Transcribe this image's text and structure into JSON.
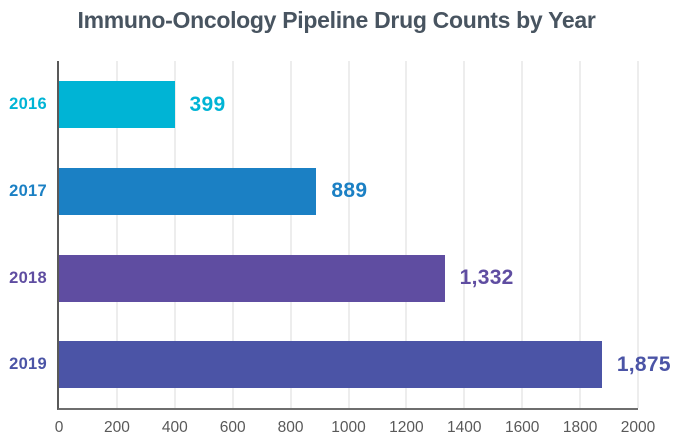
{
  "chart_data": {
    "type": "bar",
    "orientation": "horizontal",
    "title": "Immuno-Oncology Pipeline Drug Counts by Year",
    "categories": [
      "2016",
      "2017",
      "2018",
      "2019"
    ],
    "values": [
      399,
      889,
      1332,
      1875
    ],
    "value_labels": [
      "399",
      "889",
      "1,332",
      "1,875"
    ],
    "bar_colors": [
      "#00b4d5",
      "#1b80c4",
      "#5f4da1",
      "#4b54a6"
    ],
    "xlabel": "",
    "ylabel": "",
    "xlim": [
      0,
      2000
    ],
    "x_ticks": [
      0,
      200,
      400,
      600,
      800,
      1000,
      1200,
      1400,
      1600,
      1800,
      2000
    ],
    "grid": "vertical-gridlines-on",
    "legend": "none"
  },
  "colors": {
    "title": "#485460",
    "tick_label": "#595959",
    "gridline": "#ededed",
    "axis": "#595959",
    "background": "#ffffff"
  }
}
